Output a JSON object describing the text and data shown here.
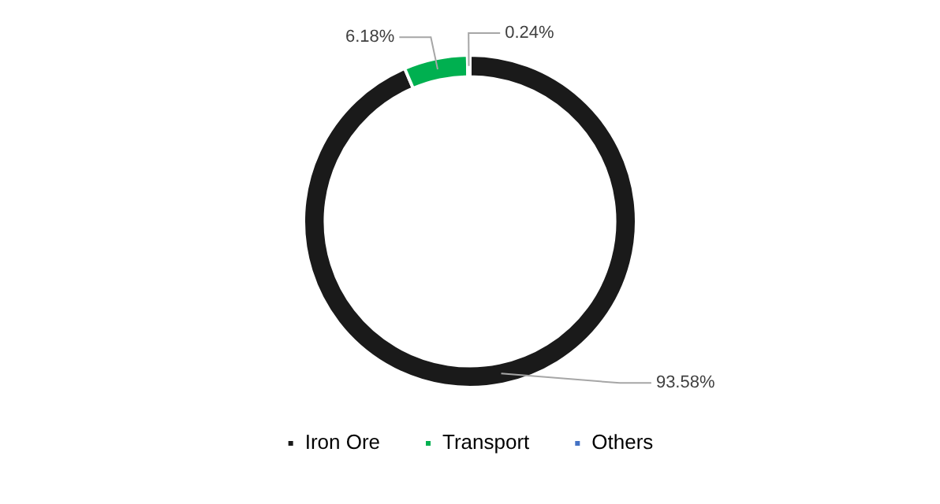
{
  "chart_data": {
    "type": "donut",
    "categories": [
      "Iron Ore",
      "Transport",
      "Others"
    ],
    "values": [
      93.58,
      6.18,
      0.24
    ],
    "colors": [
      "#1a1a1a",
      "#00b050",
      "#4472c4"
    ],
    "value_labels": [
      "93.58%",
      "6.18%",
      "0.24%"
    ],
    "legend": "bottom"
  }
}
